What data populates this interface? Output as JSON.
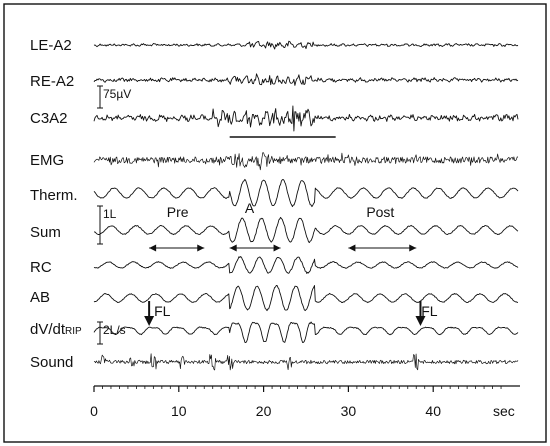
{
  "chart_data": {
    "type": "line",
    "title": "",
    "xlabel": "sec",
    "xlim": [
      0,
      50
    ],
    "x_ticks": [
      0,
      10,
      20,
      30,
      40
    ],
    "series": [
      {
        "name": "LE-A2",
        "signal": "eeg",
        "amp": 0.6,
        "active": [
          18,
          26
        ]
      },
      {
        "name": "RE-A2",
        "signal": "eeg",
        "amp": 0.9,
        "active": [
          16,
          26
        ]
      },
      {
        "name": "C3A2",
        "signal": "eeg",
        "amp": 1.4,
        "active": [
          14,
          26
        ]
      },
      {
        "name": "EMG",
        "signal": "emg",
        "amp": 1.6,
        "active": [
          16,
          21
        ]
      },
      {
        "name": "Therm.",
        "signal": "resp",
        "amp": 0.9,
        "active": [
          16,
          26
        ]
      },
      {
        "name": "Sum",
        "signal": "resp",
        "amp": 1.0,
        "active": [
          16,
          26
        ]
      },
      {
        "name": "RC",
        "signal": "resp",
        "amp": 0.6,
        "active": [
          16,
          26
        ]
      },
      {
        "name": "AB",
        "signal": "resp",
        "amp": 1.0,
        "active": [
          16,
          26
        ]
      },
      {
        "name": "dV/dtRIP",
        "name_main": "dV/dt",
        "name_sub": "RIP",
        "signal": "flow",
        "amp": 1.0,
        "active": [
          16,
          26
        ]
      },
      {
        "name": "Sound",
        "signal": "sound",
        "amp": 1.0,
        "active": [
          0,
          50
        ]
      }
    ],
    "scale_bars": [
      {
        "label": "75µV",
        "channel": "RE-A2"
      },
      {
        "label": "1L",
        "channel": "Sum"
      },
      {
        "label": "2L/s",
        "channel": "dV/dtRIP"
      }
    ],
    "annotations": [
      {
        "text": "Pre",
        "x": 10,
        "channel": "Sum"
      },
      {
        "text": "A",
        "x": 18.5,
        "channel": "Therm."
      },
      {
        "text": "Post",
        "x": 34,
        "channel": "Sum"
      },
      {
        "text": "FL",
        "x": 8.5,
        "channel": "dV/dtRIP"
      },
      {
        "text": "FL",
        "x": 40,
        "channel": "dV/dtRIP"
      }
    ],
    "arrows_bidirectional": [
      {
        "x_start": 6.5,
        "x_end": 13,
        "channel": "Sum"
      },
      {
        "x_start": 16,
        "x_end": 22,
        "channel": "Sum"
      },
      {
        "x_start": 30,
        "x_end": 38,
        "channel": "Sum"
      }
    ],
    "arrows_down": [
      {
        "x": 6.5,
        "channel": "dV/dtRIP"
      },
      {
        "x": 38.5,
        "channel": "dV/dtRIP"
      }
    ],
    "horizontal_bar": {
      "x_start": 16,
      "x_end": 28.5,
      "channel": "C3A2"
    }
  }
}
